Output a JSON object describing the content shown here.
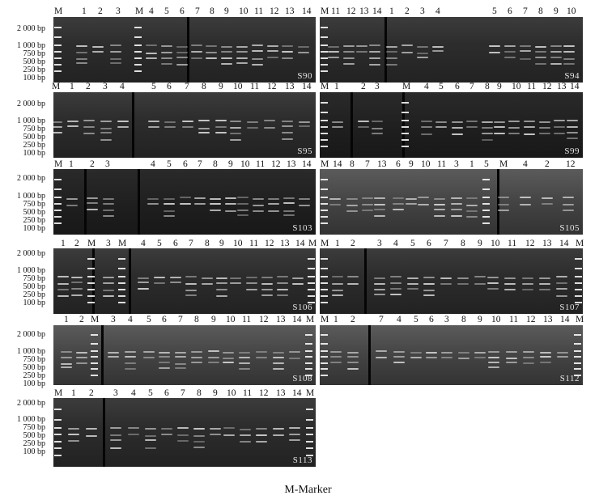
{
  "bp_labels": [
    "2 000 bp",
    "1 000 bp",
    "750 bp",
    "500 bp",
    "250 bp",
    "100 bp"
  ],
  "caption": "M-Marker",
  "rows": [
    {
      "top": 20,
      "panels": [
        {
          "name": "S90",
          "lanes_text": [
            "M",
            "1",
            "2",
            "3",
            "M",
            "4",
            "5",
            "6",
            "7",
            "8",
            "9",
            "10",
            "11",
            "12",
            "13",
            "14"
          ]
        },
        {
          "name": "S94",
          "lanes_text": [
            "M",
            "11",
            "12",
            "13",
            "14",
            "1",
            "2",
            "3",
            "4",
            "5",
            "6",
            "7",
            "8",
            "9",
            "10"
          ]
        }
      ]
    },
    {
      "name_row": 2,
      "panels": [
        {
          "name": "S95",
          "lanes_text": [
            "M",
            "1",
            "2",
            "3",
            "4",
            "5",
            "6",
            "7",
            "8",
            "9",
            "10",
            "11",
            "12",
            "13",
            "14"
          ]
        },
        {
          "name": "S99",
          "lanes_text": [
            "M",
            "1",
            "2",
            "3",
            "M",
            "4",
            "5",
            "6",
            "7",
            "8",
            "9",
            "10",
            "11",
            "12",
            "13",
            "14"
          ]
        }
      ]
    },
    {
      "panels": [
        {
          "name": "S103",
          "lanes_text": [
            "M",
            "1",
            "2",
            "3",
            "4",
            "5",
            "6",
            "7",
            "8",
            "9",
            "10",
            "11",
            "12",
            "13",
            "14"
          ]
        },
        {
          "name": "S105",
          "lanes_text": [
            "M",
            "14",
            "8",
            "7",
            "13",
            "6",
            "9",
            "10",
            "11",
            "3",
            "1",
            "5",
            "M",
            "4",
            "2",
            "12"
          ]
        }
      ]
    },
    {
      "panels": [
        {
          "name": "S106",
          "lanes_text": [
            "1",
            "2",
            "M",
            "3",
            "M",
            "4",
            "5",
            "6",
            "7",
            "8",
            "9",
            "10",
            "11",
            "12",
            "13",
            "14",
            "M"
          ]
        },
        {
          "name": "S107",
          "lanes_text": [
            "M",
            "1",
            "2",
            "3",
            "4",
            "5",
            "6",
            "7",
            "8",
            "9",
            "10",
            "11",
            "12",
            "13",
            "14",
            "M"
          ]
        }
      ]
    },
    {
      "panels": [
        {
          "name": "S108",
          "lanes_text": [
            "1",
            "2",
            "M",
            "3",
            "4",
            "5",
            "6",
            "7",
            "8",
            "9",
            "10",
            "11",
            "12",
            "13",
            "14",
            "M"
          ]
        },
        {
          "name": "S112",
          "lanes_text": [
            "M",
            "1",
            "2",
            "7",
            "4",
            "5",
            "6",
            "3",
            "8",
            "9",
            "10",
            "11",
            "12",
            "13",
            "14",
            "M"
          ]
        }
      ]
    },
    {
      "panels": [
        {
          "name": "S113",
          "lanes_text": [
            "M",
            "1",
            "2",
            "3",
            "4",
            "5",
            "6",
            "7",
            "8",
            "9",
            "10",
            "11",
            "12",
            "13",
            "14",
            "M"
          ]
        }
      ]
    }
  ]
}
